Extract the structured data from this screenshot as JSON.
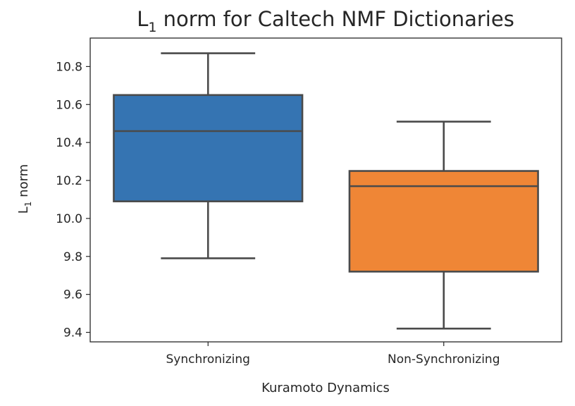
{
  "chart_data": {
    "type": "box",
    "title": {
      "main": "L",
      "sub": "1",
      "rest": " norm for Caltech NMF Dictionaries"
    },
    "xlabel": "Kuramoto Dynamics",
    "ylabel": {
      "main": "L",
      "sub": "1",
      "rest": " norm"
    },
    "ylim": [
      9.35,
      10.95
    ],
    "yticks": [
      "9.4",
      "9.6",
      "9.8",
      "10.0",
      "10.2",
      "10.4",
      "10.6",
      "10.8"
    ],
    "categories": [
      "Synchronizing",
      "Non-Synchronizing"
    ],
    "boxes": [
      {
        "name": "Synchronizing",
        "whisker_low": 9.79,
        "q1": 10.09,
        "median": 10.46,
        "q3": 10.65,
        "whisker_high": 10.87,
        "color": "#3574b2"
      },
      {
        "name": "Non-Synchronizing",
        "whisker_low": 9.42,
        "q1": 9.72,
        "median": 10.17,
        "q3": 10.25,
        "whisker_high": 10.51,
        "color": "#ef8636"
      }
    ],
    "grid": false,
    "line_color": "#4a4a4a"
  }
}
